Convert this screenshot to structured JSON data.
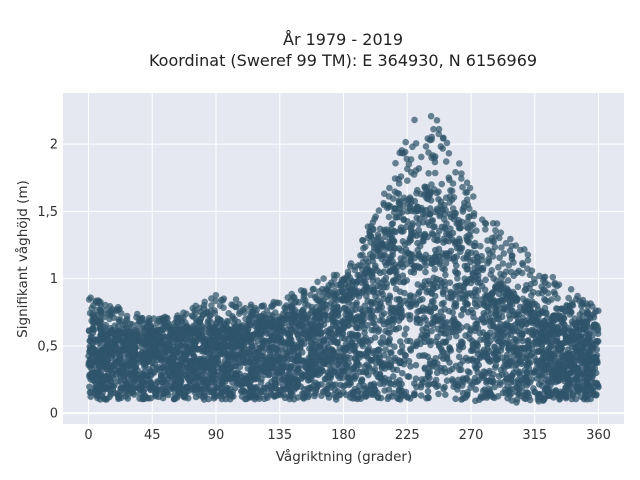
{
  "chart_data": {
    "type": "scatter",
    "title_line1": "År 1979 - 2019",
    "title_line2": "Koordinat (Sweref 99 TM): E 364930, N 6156969",
    "xlabel": "Vågriktning (grader)",
    "ylabel": "Signifikant våghöjd (m)",
    "xlim": [
      -18,
      378
    ],
    "ylim": [
      -0.08,
      2.38
    ],
    "xticks": [
      0,
      45,
      90,
      135,
      180,
      225,
      270,
      315,
      360
    ],
    "xtick_labels": [
      "0",
      "45",
      "90",
      "135",
      "180",
      "225",
      "270",
      "315",
      "360"
    ],
    "yticks": [
      0,
      0.5,
      1,
      1.5,
      2
    ],
    "ytick_labels": [
      "0",
      "0,5",
      "1",
      "1,5",
      "2"
    ],
    "grid": true,
    "marker_color": "#2f5469",
    "plot_bg": "#e5e8f1",
    "envelope": {
      "x": [
        0,
        3,
        15,
        30,
        45,
        60,
        75,
        90,
        105,
        120,
        135,
        150,
        165,
        180,
        195,
        210,
        225,
        235,
        245,
        255,
        265,
        275,
        290,
        305,
        320,
        335,
        350,
        360
      ],
      "ymin": [
        0.12,
        0.1,
        0.1,
        0.11,
        0.1,
        0.1,
        0.1,
        0.1,
        0.1,
        0.1,
        0.1,
        0.1,
        0.1,
        0.1,
        0.1,
        0.1,
        0.1,
        0.1,
        0.1,
        0.1,
        0.1,
        0.08,
        0.08,
        0.08,
        0.08,
        0.1,
        0.1,
        0.1
      ],
      "core_max": [
        0.6,
        0.66,
        0.6,
        0.6,
        0.6,
        0.6,
        0.62,
        0.62,
        0.64,
        0.66,
        0.68,
        0.72,
        0.75,
        0.85,
        1.05,
        1.35,
        1.55,
        1.62,
        1.62,
        1.55,
        1.4,
        1.15,
        0.95,
        0.85,
        0.75,
        0.7,
        0.65,
        0.62
      ],
      "sparse_max": [
        0.85,
        0.88,
        0.82,
        0.75,
        0.72,
        0.72,
        0.8,
        0.88,
        0.85,
        0.8,
        0.85,
        0.92,
        1.0,
        1.05,
        1.35,
        1.7,
        2.15,
        2.25,
        2.25,
        2.0,
        1.8,
        1.55,
        1.4,
        1.25,
        1.1,
        0.95,
        0.88,
        0.8
      ]
    }
  }
}
